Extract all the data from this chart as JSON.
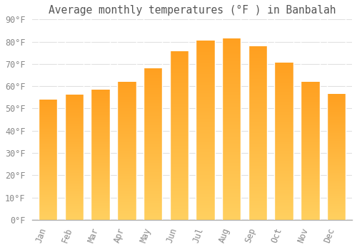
{
  "title": "Average monthly temperatures (°F ) in Banbalah",
  "months": [
    "Jan",
    "Feb",
    "Mar",
    "Apr",
    "May",
    "Jun",
    "Jul",
    "Aug",
    "Sep",
    "Oct",
    "Nov",
    "Dec"
  ],
  "values": [
    54,
    56,
    58.5,
    62,
    68,
    75.5,
    80.5,
    81.5,
    78,
    70.5,
    62,
    56.5
  ],
  "bar_color_top": "#FFA020",
  "bar_color_bottom": "#FFD060",
  "bar_edge_color": "#FFFFFF",
  "ylim": [
    0,
    90
  ],
  "ytick_step": 10,
  "background_color": "#FFFFFF",
  "plot_bg_color": "#FFFFFF",
  "grid_color": "#E0E0E0",
  "title_fontsize": 10.5,
  "tick_fontsize": 8.5,
  "title_color": "#555555",
  "tick_color": "#888888"
}
